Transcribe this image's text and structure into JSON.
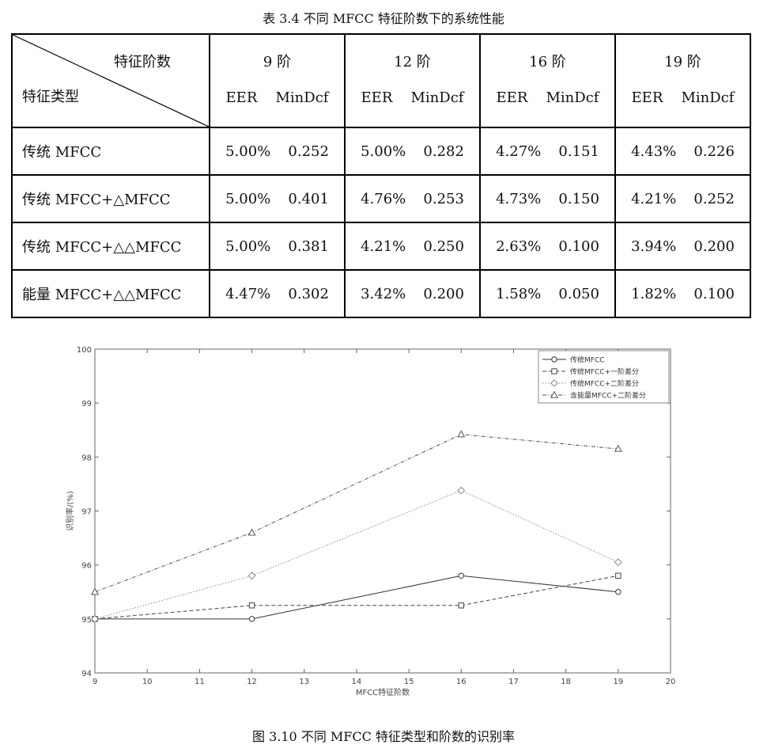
{
  "table_caption": "表 3.4 不同 MFCC 特征阶数下的系统性能",
  "table": {
    "corner_top": "特征阶数",
    "corner_bottom": "特征类型",
    "orders": [
      "9 阶",
      "12 阶",
      "16 阶",
      "19 阶"
    ],
    "sub_headers": [
      "EER",
      "MinDcf"
    ],
    "rows": [
      {
        "label": "传统 MFCC",
        "cells": [
          [
            "5.00%",
            "0.252"
          ],
          [
            "5.00%",
            "0.282"
          ],
          [
            "4.27%",
            "0.151"
          ],
          [
            "4.43%",
            "0.226"
          ]
        ]
      },
      {
        "label": "传统 MFCC+△MFCC",
        "cells": [
          [
            "5.00%",
            "0.401"
          ],
          [
            "4.76%",
            "0.253"
          ],
          [
            "4.73%",
            "0.150"
          ],
          [
            "4.21%",
            "0.252"
          ]
        ]
      },
      {
        "label": "传统 MFCC+△△MFCC",
        "cells": [
          [
            "5.00%",
            "0.381"
          ],
          [
            "4.21%",
            "0.250"
          ],
          [
            "2.63%",
            "0.100"
          ],
          [
            "3.94%",
            "0.200"
          ]
        ]
      },
      {
        "label": "能量 MFCC+△△MFCC",
        "cells": [
          [
            "4.47%",
            "0.302"
          ],
          [
            "3.42%",
            "0.200"
          ],
          [
            "1.58%",
            "0.050"
          ],
          [
            "1.82%",
            "0.100"
          ]
        ]
      }
    ]
  },
  "chart_data": {
    "type": "line",
    "title": "",
    "xlabel": "MFCC特征阶数",
    "ylabel": "识别率/(%)",
    "xlim": [
      9,
      20
    ],
    "ylim": [
      94,
      100
    ],
    "x_ticks": [
      9,
      10,
      11,
      12,
      13,
      14,
      15,
      16,
      17,
      18,
      19,
      20
    ],
    "y_ticks": [
      94,
      95,
      96,
      97,
      98,
      99,
      100
    ],
    "legend_position": "top-right",
    "x": [
      9,
      12,
      16,
      19
    ],
    "series": [
      {
        "name": "传统MFCC",
        "values": [
          95.0,
          95.0,
          95.8,
          95.5
        ],
        "marker": "circle",
        "dash": "solid",
        "color": "#333333"
      },
      {
        "name": "传统MFCC+一阶差分",
        "values": [
          95.0,
          95.25,
          95.25,
          95.8
        ],
        "marker": "square",
        "dash": "dashed",
        "color": "#444444"
      },
      {
        "name": "传统MFCC+二阶差分",
        "values": [
          95.0,
          95.8,
          97.38,
          96.05
        ],
        "marker": "diamond",
        "dash": "dotted",
        "color": "#888888"
      },
      {
        "name": "含能量MFCC+二阶差分",
        "values": [
          95.5,
          96.6,
          98.42,
          98.15
        ],
        "marker": "triangle",
        "dash": "dashdot",
        "color": "#555555"
      }
    ]
  },
  "figure_caption": "图 3.10 不同 MFCC 特征类型和阶数的识别率"
}
